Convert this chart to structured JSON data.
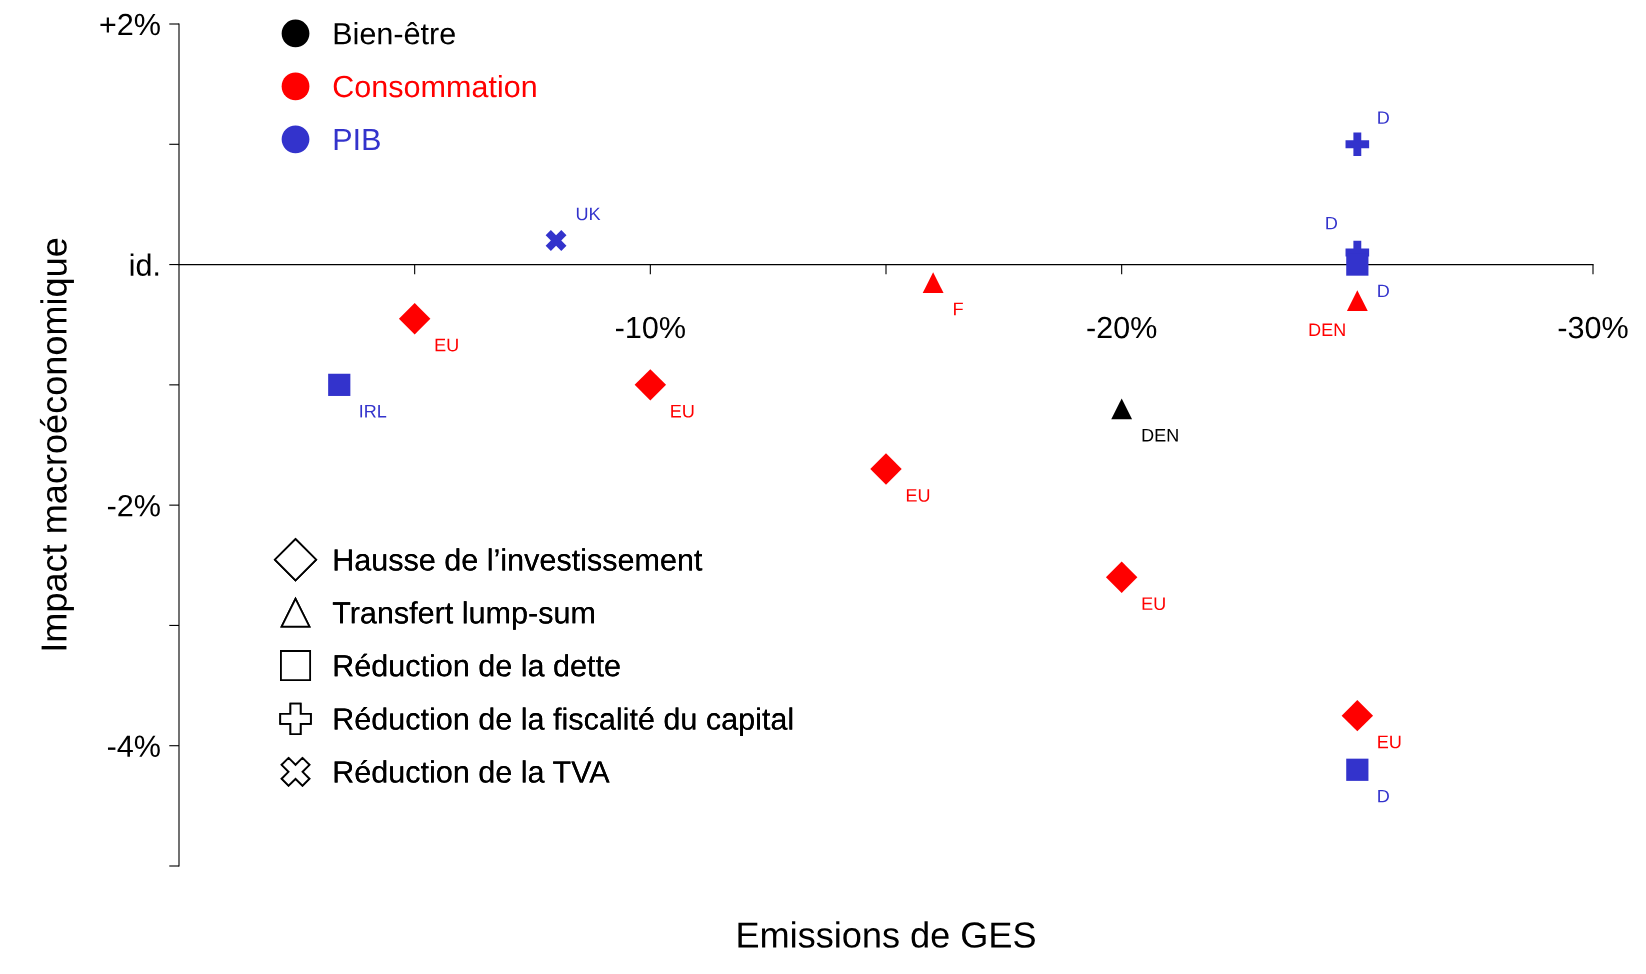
{
  "chart_data": {
    "type": "scatter",
    "xlabel": "Emissions de GES",
    "ylabel": "Impact macroéconomique",
    "xlim": [
      0,
      -30
    ],
    "ylim": [
      -5,
      2
    ],
    "xticks": [
      {
        "value": -5,
        "label": null
      },
      {
        "value": -10,
        "label": "-10%"
      },
      {
        "value": -15,
        "label": null
      },
      {
        "value": -20,
        "label": "-20%"
      },
      {
        "value": -25,
        "label": null
      },
      {
        "value": -30,
        "label": "-30%"
      }
    ],
    "yticks": [
      {
        "value": 2,
        "label": "+2%"
      },
      {
        "value": 1,
        "label": null
      },
      {
        "value": 0,
        "label": "id."
      },
      {
        "value": -1,
        "label": null
      },
      {
        "value": -2,
        "label": "-2%"
      },
      {
        "value": -3,
        "label": null
      },
      {
        "value": -4,
        "label": "-4%"
      },
      {
        "value": -5,
        "label": null
      }
    ],
    "grid": false,
    "legend": "top left",
    "annotations": [
      "Hausse de l’investissement",
      "Transfert lump-sum",
      "Réduction de la dette",
      "Réduction de la fiscalité du capital",
      "Réduction de la TVA"
    ],
    "series": [
      {
        "name": "Bien-être",
        "color": "#000000",
        "marker": "triangle",
        "x": [
          -20
        ],
        "values": [
          -1.2
        ],
        "value_labels": [
          "DEN"
        ]
      },
      {
        "name": "Consommation",
        "color": "#ff0000",
        "marker": "diamond",
        "x": [
          -5,
          -10,
          -15,
          -20,
          -25
        ],
        "values": [
          -0.45,
          -1.0,
          -1.7,
          -2.6,
          -3.75
        ],
        "value_labels": [
          "EU",
          "EU",
          "EU",
          "EU",
          "EU"
        ]
      },
      {
        "color": "#ff0000",
        "marker": "triangle",
        "x": [
          -16,
          -25
        ],
        "values": [
          -0.15,
          -0.3
        ],
        "value_labels": [
          "F",
          "DEN"
        ]
      },
      {
        "name": "PIB",
        "color": "#3333cc",
        "marker": "plus",
        "x": [
          -25,
          -25
        ],
        "values": [
          1.0,
          0.1
        ],
        "value_labels": [
          "D",
          "D"
        ]
      },
      {
        "color": "#3333cc",
        "marker": "square",
        "x": [
          -3.4,
          -25,
          -25
        ],
        "values": [
          -1.0,
          -4.2,
          0.0
        ],
        "value_labels": [
          "IRL",
          "D",
          "D"
        ]
      },
      {
        "color": "#3333cc",
        "marker": "cross",
        "x": [
          -8
        ],
        "values": [
          0.2
        ],
        "value_labels": [
          "UK"
        ]
      }
    ]
  }
}
